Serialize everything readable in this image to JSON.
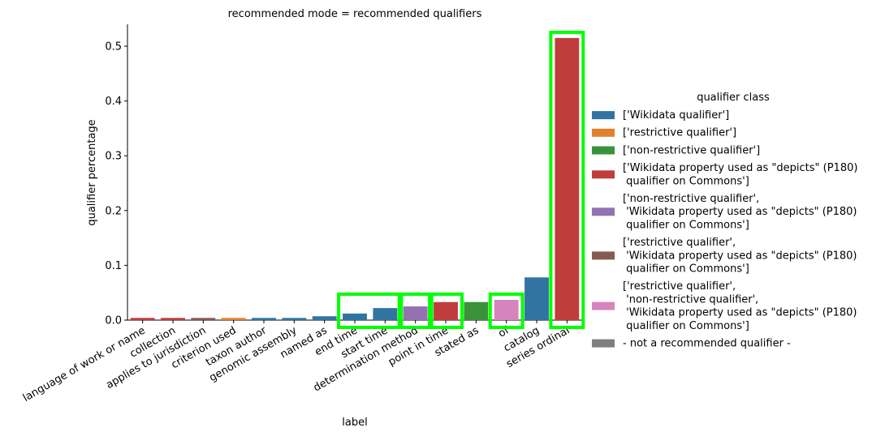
{
  "chart_data": {
    "type": "bar",
    "title": "recommended mode = recommended qualifiers",
    "xlabel": "label",
    "ylabel": "qualifier percentage",
    "ylim": [
      0,
      0.54
    ],
    "yticks": [
      0.0,
      0.1,
      0.2,
      0.3,
      0.4,
      0.5
    ],
    "ytick_labels": [
      "0.0",
      "0.1",
      "0.2",
      "0.3",
      "0.4",
      "0.5"
    ],
    "categories": [
      "language of work or name",
      "collection",
      "applies to jurisdiction",
      "criterion used",
      "taxon author",
      "genomic assembly",
      "named as",
      "end time",
      "start time",
      "determination method",
      "point in time",
      "stated as",
      "of",
      "catalog",
      "series ordinal"
    ],
    "values": [
      0.004,
      0.004,
      0.004,
      0.004,
      0.004,
      0.004,
      0.007,
      0.012,
      0.022,
      0.025,
      0.033,
      0.033,
      0.037,
      0.078,
      0.515
    ],
    "bar_classes": [
      3,
      3,
      5,
      1,
      0,
      0,
      0,
      0,
      0,
      4,
      3,
      2,
      6,
      0,
      3
    ],
    "highlighted_groups": [
      [
        7,
        8
      ],
      [
        9
      ],
      [
        10
      ],
      [
        12
      ],
      [
        14
      ]
    ],
    "highlight_color": "#00ff00",
    "legend": {
      "title": "qualifier class",
      "position": "right",
      "entries": [
        {
          "lines": [
            "['Wikidata qualifier']"
          ],
          "color": "#3274a1"
        },
        {
          "lines": [
            "['restrictive qualifier']"
          ],
          "color": "#e1812c"
        },
        {
          "lines": [
            "['non-restrictive qualifier']"
          ],
          "color": "#3a923a"
        },
        {
          "lines": [
            "['Wikidata property used as \"depicts\" (P180)",
            " qualifier on Commons']"
          ],
          "color": "#c03d3e"
        },
        {
          "lines": [
            "['non-restrictive qualifier',",
            " 'Wikidata property used as \"depicts\" (P180)",
            " qualifier on Commons']"
          ],
          "color": "#9372b2"
        },
        {
          "lines": [
            "['restrictive qualifier',",
            " 'Wikidata property used as \"depicts\" (P180)",
            " qualifier on Commons']"
          ],
          "color": "#845b53"
        },
        {
          "lines": [
            "['restrictive qualifier',",
            " 'non-restrictive qualifier',",
            " 'Wikidata property used as \"depicts\" (P180)",
            " qualifier on Commons']"
          ],
          "color": "#d684bd"
        },
        {
          "lines": [
            "- not a recommended qualifier -"
          ],
          "color": "#7f7f7f"
        }
      ]
    },
    "grid": false
  }
}
